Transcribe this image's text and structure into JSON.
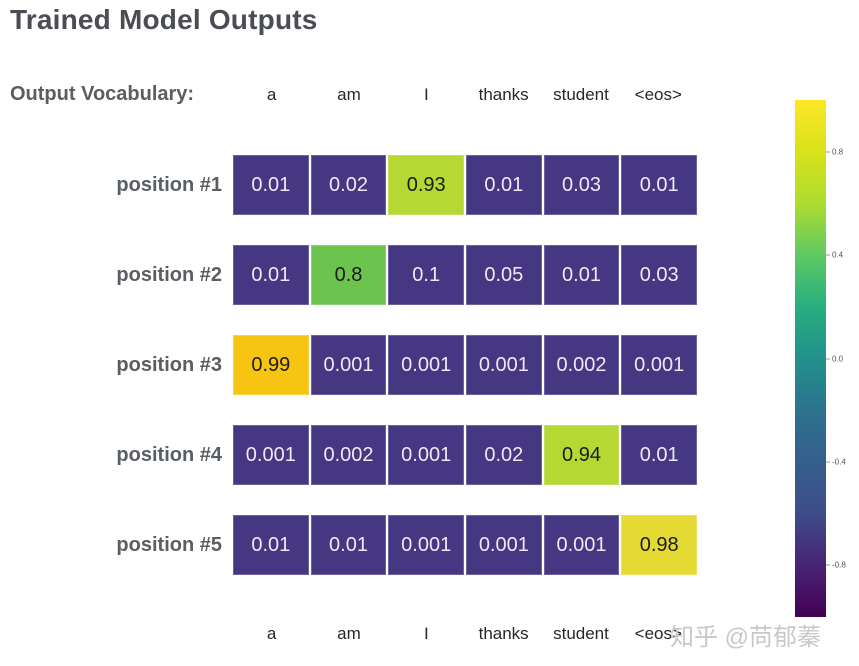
{
  "page_title": "Trained Model Outputs",
  "vocab_label": "Output Vocabulary:",
  "vocab_tokens": [
    "a",
    "am",
    "I",
    "thanks",
    "student",
    "<eos>"
  ],
  "footer_tokens": [
    "a",
    "am",
    "I",
    "thanks",
    "student",
    "<eos>"
  ],
  "rows": [
    {
      "label": "position #1",
      "cells": [
        {
          "text": "0.01"
        },
        {
          "text": "0.02"
        },
        {
          "text": "0.93",
          "bg": "#b5d832"
        },
        {
          "text": "0.01"
        },
        {
          "text": "0.03"
        },
        {
          "text": "0.01"
        }
      ]
    },
    {
      "label": "position #2",
      "cells": [
        {
          "text": "0.01"
        },
        {
          "text": "0.8",
          "bg": "#6cc44e"
        },
        {
          "text": "0.1"
        },
        {
          "text": "0.05"
        },
        {
          "text": "0.01"
        },
        {
          "text": "0.03"
        }
      ]
    },
    {
      "label": "position #3",
      "cells": [
        {
          "text": "0.99",
          "bg": "#f7c411"
        },
        {
          "text": "0.001"
        },
        {
          "text": "0.001"
        },
        {
          "text": "0.001"
        },
        {
          "text": "0.002"
        },
        {
          "text": "0.001"
        }
      ]
    },
    {
      "label": "position #4",
      "cells": [
        {
          "text": "0.001"
        },
        {
          "text": "0.002"
        },
        {
          "text": "0.001"
        },
        {
          "text": "0.02"
        },
        {
          "text": "0.94",
          "bg": "#b5d832"
        },
        {
          "text": "0.01"
        }
      ]
    },
    {
      "label": "position #5",
      "cells": [
        {
          "text": "0.01"
        },
        {
          "text": "0.01"
        },
        {
          "text": "0.001"
        },
        {
          "text": "0.001"
        },
        {
          "text": "0.001"
        },
        {
          "text": "0.98",
          "bg": "#e5d933"
        }
      ]
    }
  ],
  "colors": {
    "cell_default_bg": "#453781",
    "cell_default_text": "#edeaf4",
    "cell_highlight_text": "#1b1b1b",
    "title_text": "#4b4d54",
    "label_text": "#595e63"
  },
  "colorbar": {
    "tick_labels": [
      "0.8",
      "0.4",
      "0.0",
      "-0.4",
      "-0.8"
    ],
    "tick_values": [
      0.8,
      0.4,
      0.0,
      -0.4,
      -0.8
    ],
    "value_range": [
      1,
      -1
    ],
    "gradient_colors": [
      "#fde725",
      "#d8e219",
      "#addc30",
      "#5ec962",
      "#28ae80",
      "#21918c",
      "#2c728e",
      "#355f8d",
      "#3e4c8a",
      "#482475",
      "#440154"
    ]
  },
  "watermark": "知乎 @苘郁蓁",
  "chart_data": {
    "type": "heatmap",
    "title": "Trained Model Outputs",
    "columns": [
      "a",
      "am",
      "I",
      "thanks",
      "student",
      "<eos>"
    ],
    "row_labels": [
      "position #1",
      "position #2",
      "position #3",
      "position #4",
      "position #5"
    ],
    "values": [
      [
        0.01,
        0.02,
        0.93,
        0.01,
        0.03,
        0.01
      ],
      [
        0.01,
        0.8,
        0.1,
        0.05,
        0.01,
        0.03
      ],
      [
        0.99,
        0.001,
        0.001,
        0.001,
        0.002,
        0.001
      ],
      [
        0.001,
        0.002,
        0.001,
        0.02,
        0.94,
        0.01
      ],
      [
        0.01,
        0.01,
        0.001,
        0.001,
        0.001,
        0.98
      ]
    ],
    "colormap": "viridis",
    "colorbar_ticks": [
      0.8,
      0.4,
      0.0,
      -0.4,
      -0.8
    ],
    "colorbar_range": [
      -1,
      1
    ],
    "legend_position": "right",
    "grid": false
  }
}
